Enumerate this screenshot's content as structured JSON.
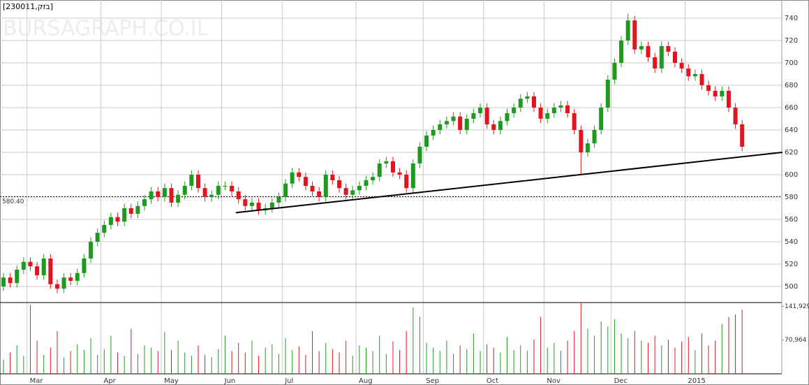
{
  "chart_data": {
    "type": "candlestick",
    "title": "[230011,בזק]",
    "watermark": "BURSAGRAPH.CO.IL",
    "categories": [
      null,
      null,
      null,
      null,
      "Mar",
      null,
      null,
      null,
      null,
      null,
      null,
      null,
      null,
      null,
      null,
      "Apr",
      null,
      null,
      null,
      null,
      null,
      null,
      null,
      null,
      "May",
      null,
      null,
      null,
      null,
      null,
      null,
      null,
      null,
      "Jun",
      null,
      null,
      null,
      null,
      null,
      null,
      null,
      null,
      "Jul",
      null,
      null,
      null,
      null,
      null,
      null,
      null,
      null,
      null,
      null,
      "Aug",
      null,
      null,
      null,
      null,
      null,
      null,
      null,
      null,
      null,
      "Sep",
      null,
      null,
      null,
      null,
      null,
      null,
      null,
      null,
      "Oct",
      null,
      null,
      null,
      null,
      null,
      null,
      null,
      null,
      "Nov",
      null,
      null,
      null,
      null,
      null,
      null,
      null,
      null,
      null,
      "Dec",
      null,
      null,
      null,
      null,
      null,
      null,
      null,
      null,
      null,
      null,
      "2015",
      null,
      null,
      null,
      null,
      null,
      null,
      null,
      null
    ],
    "open": [
      500,
      508,
      503,
      515,
      522,
      518,
      510,
      525,
      502,
      498,
      508,
      505,
      512,
      525,
      540,
      548,
      555,
      562,
      558,
      570,
      565,
      572,
      578,
      585,
      580,
      588,
      575,
      582,
      590,
      600,
      588,
      580,
      582,
      590,
      590,
      585,
      578,
      572,
      575,
      568,
      570,
      575,
      580,
      592,
      602,
      598,
      590,
      585,
      580,
      600,
      595,
      588,
      582,
      586,
      590,
      595,
      598,
      610,
      612,
      602,
      600,
      588,
      610,
      625,
      635,
      640,
      645,
      648,
      652,
      640,
      650,
      655,
      660,
      645,
      640,
      648,
      655,
      660,
      668,
      670,
      660,
      650,
      655,
      660,
      662,
      655,
      640,
      620,
      628,
      640,
      660,
      685,
      700,
      720,
      738,
      712,
      715,
      705,
      695,
      715,
      710,
      700,
      695,
      688,
      690,
      680,
      675,
      670,
      675,
      660,
      645
    ],
    "high": [
      512,
      512,
      519,
      526,
      526,
      522,
      529,
      529,
      506,
      512,
      512,
      516,
      529,
      544,
      552,
      559,
      566,
      566,
      574,
      574,
      576,
      582,
      589,
      589,
      592,
      592,
      586,
      594,
      604,
      604,
      592,
      586,
      594,
      594,
      594,
      589,
      582,
      579,
      579,
      574,
      579,
      584,
      596,
      606,
      606,
      602,
      594,
      589,
      604,
      604,
      599,
      592,
      590,
      594,
      599,
      602,
      614,
      616,
      616,
      606,
      604,
      614,
      629,
      639,
      644,
      649,
      652,
      656,
      656,
      654,
      659,
      664,
      664,
      649,
      652,
      659,
      664,
      672,
      674,
      674,
      664,
      659,
      664,
      666,
      666,
      659,
      644,
      632,
      644,
      664,
      689,
      704,
      724,
      744,
      742,
      719,
      719,
      709,
      719,
      719,
      714,
      704,
      699,
      694,
      694,
      684,
      679,
      679,
      679,
      664,
      649
    ],
    "low": [
      496,
      499,
      499,
      511,
      514,
      506,
      506,
      498,
      494,
      494,
      501,
      501,
      508,
      521,
      536,
      544,
      551,
      554,
      554,
      561,
      561,
      568,
      574,
      576,
      576,
      571,
      571,
      578,
      586,
      584,
      576,
      576,
      578,
      586,
      581,
      574,
      568,
      568,
      564,
      564,
      566,
      571,
      576,
      588,
      594,
      586,
      581,
      576,
      576,
      591,
      584,
      578,
      578,
      582,
      586,
      591,
      594,
      606,
      598,
      596,
      584,
      584,
      606,
      621,
      631,
      636,
      641,
      644,
      636,
      636,
      646,
      651,
      641,
      636,
      636,
      644,
      651,
      656,
      664,
      656,
      646,
      646,
      651,
      656,
      651,
      636,
      600,
      616,
      624,
      636,
      656,
      681,
      696,
      716,
      708,
      708,
      701,
      691,
      691,
      706,
      696,
      691,
      684,
      684,
      676,
      671,
      666,
      666,
      656,
      641,
      621
    ],
    "close": [
      508,
      503,
      515,
      522,
      518,
      510,
      525,
      502,
      498,
      508,
      505,
      512,
      525,
      540,
      548,
      555,
      562,
      558,
      570,
      565,
      572,
      578,
      585,
      580,
      588,
      575,
      582,
      590,
      600,
      588,
      580,
      582,
      590,
      590,
      585,
      578,
      572,
      575,
      568,
      570,
      575,
      580,
      592,
      602,
      598,
      590,
      585,
      580,
      600,
      595,
      588,
      582,
      586,
      590,
      595,
      598,
      610,
      612,
      602,
      600,
      588,
      610,
      625,
      635,
      640,
      645,
      648,
      652,
      640,
      650,
      655,
      660,
      645,
      640,
      648,
      655,
      660,
      668,
      670,
      660,
      650,
      655,
      660,
      662,
      655,
      640,
      620,
      628,
      640,
      660,
      685,
      700,
      720,
      738,
      712,
      715,
      705,
      695,
      715,
      710,
      700,
      695,
      688,
      690,
      680,
      675,
      670,
      675,
      660,
      645,
      625
    ],
    "volume": [
      30000,
      45000,
      60000,
      38000,
      145000,
      70000,
      40000,
      55000,
      90000,
      35000,
      48000,
      62000,
      50000,
      75000,
      40000,
      52000,
      80000,
      45000,
      38000,
      95000,
      42000,
      60000,
      55000,
      48000,
      88000,
      50000,
      70000,
      45000,
      38000,
      60000,
      40000,
      35000,
      52000,
      80000,
      48000,
      65000,
      45000,
      70000,
      38000,
      55000,
      62000,
      42000,
      75000,
      50000,
      58000,
      40000,
      90000,
      48000,
      65000,
      52000,
      45000,
      70000,
      38000,
      60000,
      55000,
      48000,
      80000,
      42000,
      68000,
      50000,
      90000,
      140000,
      120000,
      65000,
      55000,
      48000,
      70000,
      42000,
      60000,
      52000,
      85000,
      48000,
      62000,
      55000,
      45000,
      78000,
      50000,
      60000,
      48000,
      72000,
      120000,
      55000,
      65000,
      48000,
      70000,
      90000,
      150000,
      95000,
      80000,
      110000,
      100000,
      115000,
      85000,
      75000,
      90000,
      70000,
      65000,
      80000,
      60000,
      72000,
      55000,
      68000,
      78000,
      50000,
      85000,
      60000,
      70000,
      105000,
      120000,
      125000,
      135000
    ],
    "up_color": "#1e9a1e",
    "down_color": "#e3141e",
    "ylim": [
      485.6,
      756.25
    ],
    "yticks": [
      500,
      520,
      540,
      560,
      580,
      600,
      620,
      640,
      660,
      680,
      700,
      720,
      740
    ],
    "volume_ylim": [
      0,
      150000
    ],
    "volume_yticks": [
      {
        "value": 70964,
        "label": "70,964"
      },
      {
        "value": 141929,
        "label": "141,929"
      }
    ],
    "reference": {
      "value": 580.4,
      "label": "580.40"
    },
    "trendline": {
      "x": [
        34.6,
        116
      ],
      "y": [
        566,
        620
      ]
    },
    "grid": true
  }
}
